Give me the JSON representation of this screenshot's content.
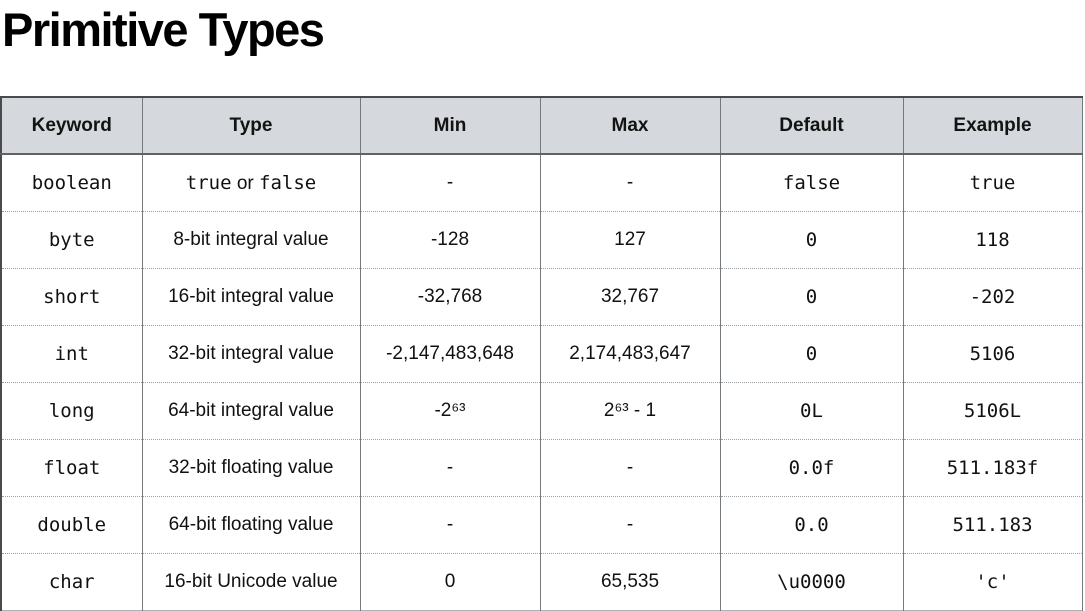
{
  "page_title": "Primitive Types",
  "table": {
    "columns": [
      {
        "key": "keyword",
        "label": "Keyword",
        "mono": true
      },
      {
        "key": "type",
        "label": "Type",
        "mono": false
      },
      {
        "key": "min",
        "label": "Min",
        "mono": false
      },
      {
        "key": "max",
        "label": "Max",
        "mono": false
      },
      {
        "key": "default",
        "label": "Default",
        "mono": true
      },
      {
        "key": "example",
        "label": "Example",
        "mono": true
      }
    ],
    "rows": [
      {
        "keyword": "boolean",
        "type": "true or false",
        "type_parts": [
          {
            "text": "true",
            "mono": true
          },
          {
            "text": " or ",
            "mono": false
          },
          {
            "text": "false",
            "mono": true
          }
        ],
        "min": "-",
        "max": "-",
        "default": "false",
        "example": "true"
      },
      {
        "keyword": "byte",
        "type": "8-bit integral value",
        "min": "-128",
        "max": "127",
        "default": "0",
        "example": "118"
      },
      {
        "keyword": "short",
        "type": "16-bit integral value",
        "min": "-32,768",
        "max": "32,767",
        "default": "0",
        "example": "-202"
      },
      {
        "keyword": "int",
        "type": "32-bit integral value",
        "min": "-2,147,483,648",
        "max": "2,174,483,647",
        "default": "0",
        "example": "5106"
      },
      {
        "keyword": "long",
        "type": "64-bit integral value",
        "min": "-2⁶³",
        "max": "2⁶³ - 1",
        "default": "0L",
        "example": "5106L"
      },
      {
        "keyword": "float",
        "type": "32-bit floating value",
        "min": "-",
        "max": "-",
        "default": "0.0f",
        "example": "511.183f"
      },
      {
        "keyword": "double",
        "type": "64-bit floating value",
        "min": "-",
        "max": "-",
        "default": "0.0",
        "example": "511.183"
      },
      {
        "keyword": "char",
        "type": "16-bit Unicode value",
        "min": "0",
        "max": "65,535",
        "default": "\\u0000",
        "example": "'c'"
      }
    ]
  },
  "colors": {
    "header_background": "#d5d8dc",
    "cell_border": "#76797c",
    "row_separator_dotted": "#9aa0a4",
    "text": "#111111"
  }
}
